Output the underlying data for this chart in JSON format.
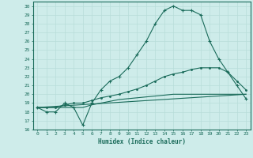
{
  "xlabel": "Humidex (Indice chaleur)",
  "bg_color": "#ceecea",
  "grid_color": "#b8ddd9",
  "line_color": "#1a6b5a",
  "xlim": [
    -0.5,
    23.5
  ],
  "ylim": [
    16,
    30.5
  ],
  "yticks": [
    16,
    17,
    18,
    19,
    20,
    21,
    22,
    23,
    24,
    25,
    26,
    27,
    28,
    29,
    30
  ],
  "xticks": [
    0,
    1,
    2,
    3,
    4,
    5,
    6,
    7,
    8,
    9,
    10,
    11,
    12,
    13,
    14,
    15,
    16,
    17,
    18,
    19,
    20,
    21,
    22,
    23
  ],
  "curve1_x": [
    0,
    1,
    2,
    3,
    4,
    5,
    6,
    7,
    8,
    9,
    10,
    11,
    12,
    13,
    14,
    15,
    16,
    17,
    18,
    19,
    20,
    21,
    22,
    23
  ],
  "curve1_y": [
    18.5,
    18.0,
    18.0,
    19.0,
    18.5,
    16.5,
    19.0,
    20.5,
    21.5,
    22.0,
    23.0,
    24.5,
    26.0,
    28.0,
    29.5,
    30.0,
    29.5,
    29.5,
    29.0,
    26.0,
    24.0,
    22.5,
    21.0,
    19.5
  ],
  "curve2_x": [
    0,
    1,
    2,
    3,
    4,
    5,
    6,
    7,
    8,
    9,
    10,
    11,
    12,
    13,
    14,
    15,
    16,
    17,
    18,
    19,
    20,
    21,
    22,
    23
  ],
  "curve2_y": [
    18.5,
    18.5,
    18.5,
    18.8,
    19.0,
    19.0,
    19.3,
    19.6,
    19.8,
    20.0,
    20.3,
    20.6,
    21.0,
    21.5,
    22.0,
    22.3,
    22.5,
    22.8,
    23.0,
    23.0,
    23.0,
    22.5,
    21.5,
    20.5
  ],
  "curve3_x": [
    0,
    23
  ],
  "curve3_y": [
    18.5,
    20.0
  ],
  "curve4_x": [
    0,
    1,
    2,
    3,
    4,
    5,
    6,
    7,
    8,
    9,
    10,
    11,
    12,
    13,
    14,
    15,
    16,
    17,
    18,
    19,
    20,
    21,
    22,
    23
  ],
  "curve4_y": [
    18.5,
    18.5,
    18.5,
    18.5,
    18.5,
    18.5,
    18.8,
    19.0,
    19.2,
    19.4,
    19.5,
    19.6,
    19.7,
    19.8,
    19.9,
    20.0,
    20.0,
    20.0,
    20.0,
    20.0,
    20.0,
    20.0,
    20.0,
    20.0
  ]
}
